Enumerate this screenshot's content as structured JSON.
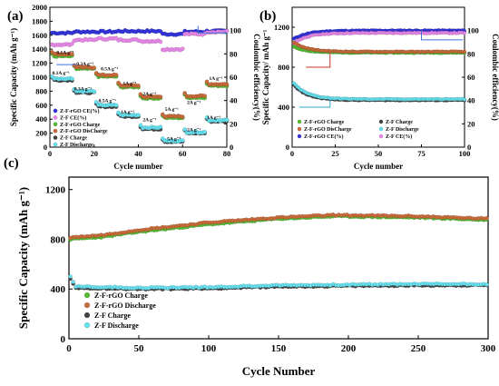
{
  "chart_data": [
    {
      "panel": "(a)",
      "type": "scatter",
      "xlabel": "Cycle number",
      "ylabel": "Specific Capacity (mAh g⁻¹)",
      "y2label": "Coulombic efficiency(%)",
      "xlim": [
        0,
        80
      ],
      "ylim": [
        0,
        2000
      ],
      "y2lim": [
        0,
        120
      ],
      "xticks": [
        "0",
        "20",
        "40",
        "60",
        "80"
      ],
      "yticks": [
        "0",
        "200",
        "400",
        "600",
        "800",
        "1000",
        "1200",
        "1400",
        "1600",
        "1800",
        "2000"
      ],
      "y2ticks": [
        "0",
        "20",
        "40",
        "60",
        "80",
        "100"
      ],
      "legend": [
        "Z-F-rGO CE(%)",
        "Z-F CE(%)",
        "Z-F-rGO Charge",
        "Z-F-rGO DisCharge",
        "Z-F Charge",
        "Z-F Discharge"
      ],
      "annotations": [
        {
          "text": "0.1A g⁻¹",
          "x": 3,
          "y": 1330
        },
        {
          "text": "0.3A g⁻¹",
          "x": 12,
          "y": 1170
        },
        {
          "text": "0.5A g⁻¹",
          "x": 23,
          "y": 1100
        },
        {
          "text": "1A g⁻¹",
          "x": 33,
          "y": 890
        },
        {
          "text": "2A g⁻¹",
          "x": 42,
          "y": 740
        },
        {
          "text": "5A g⁻¹",
          "x": 52,
          "y": 520
        },
        {
          "text": "2A g⁻¹",
          "x": 62,
          "y": 620
        },
        {
          "text": "1A g⁻¹",
          "x": 72,
          "y": 960
        },
        {
          "text": "0.1A g⁻¹",
          "x": 1,
          "y": 1040
        },
        {
          "text": "0.3A g⁻¹",
          "x": 11,
          "y": 810
        },
        {
          "text": "0.5A g⁻¹",
          "x": 22,
          "y": 640
        },
        {
          "text": "1A g⁻¹",
          "x": 32,
          "y": 480
        },
        {
          "text": "2A g⁻¹",
          "x": 42,
          "y": 370
        },
        {
          "text": "5A g⁻¹",
          "x": 53,
          "y": 100
        },
        {
          "text": "2A g⁻¹",
          "x": 62,
          "y": 230
        },
        {
          "text": "1A g⁻¹",
          "x": 71,
          "y": 400
        }
      ],
      "series": [
        {
          "name": "Z-F-rGO CE(%)",
          "axis": "right",
          "color": "#3333dd",
          "segments": [
            [
              1,
              10,
              98
            ],
            [
              11,
              20,
              99
            ],
            [
              21,
              30,
              99
            ],
            [
              31,
              40,
              99.5
            ],
            [
              41,
              50,
              99.5
            ],
            [
              51,
              60,
              97
            ],
            [
              61,
              70,
              99
            ],
            [
              71,
              80,
              99.5
            ]
          ]
        },
        {
          "name": "Z-F CE(%)",
          "axis": "right",
          "color": "#e888e8",
          "segments": [
            [
              1,
              10,
              88
            ],
            [
              11,
              20,
              92
            ],
            [
              21,
              30,
              93
            ],
            [
              31,
              40,
              92
            ],
            [
              41,
              50,
              91
            ],
            [
              51,
              60,
              84
            ],
            [
              61,
              70,
              97
            ],
            [
              71,
              80,
              99
            ]
          ]
        },
        {
          "name": "Z-F-rGO Charge",
          "axis": "left",
          "color": "#55bb33",
          "segments": [
            [
              1,
              10,
              1300
            ],
            [
              11,
              20,
              1120
            ],
            [
              21,
              30,
              1010
            ],
            [
              31,
              40,
              860
            ],
            [
              41,
              50,
              700
            ],
            [
              51,
              60,
              420
            ],
            [
              61,
              70,
              710
            ],
            [
              71,
              80,
              880
            ]
          ]
        },
        {
          "name": "Z-F-rGO DisCharge",
          "axis": "left",
          "color": "#c86a3a",
          "segments": [
            [
              1,
              10,
              1330
            ],
            [
              11,
              20,
              1140
            ],
            [
              21,
              30,
              1030
            ],
            [
              31,
              40,
              880
            ],
            [
              41,
              50,
              720
            ],
            [
              51,
              60,
              440
            ],
            [
              61,
              70,
              730
            ],
            [
              71,
              80,
              900
            ]
          ]
        },
        {
          "name": "Z-F Charge",
          "axis": "left",
          "color": "#444444",
          "segments": [
            [
              1,
              10,
              960
            ],
            [
              11,
              20,
              780
            ],
            [
              21,
              30,
              580
            ],
            [
              31,
              40,
              440
            ],
            [
              41,
              50,
              260
            ],
            [
              51,
              60,
              80
            ],
            [
              61,
              70,
              200
            ],
            [
              71,
              80,
              370
            ]
          ]
        },
        {
          "name": "Z-F Discharge",
          "axis": "left",
          "color": "#66e0ee",
          "segments": [
            [
              1,
              10,
              980
            ],
            [
              11,
              20,
              800
            ],
            [
              21,
              30,
              600
            ],
            [
              31,
              40,
              460
            ],
            [
              41,
              50,
              280
            ],
            [
              51,
              60,
              90
            ],
            [
              61,
              70,
              215
            ],
            [
              71,
              80,
              385
            ]
          ]
        }
      ]
    },
    {
      "panel": "(b)",
      "type": "scatter",
      "xlabel": "Cycle number",
      "ylabel": "Specific Capacity/ mAh g⁻¹",
      "y2label": "Coulombic efficiency(%)",
      "xlim": [
        0,
        100
      ],
      "ylim": [
        0,
        1400
      ],
      "y2lim": [
        0,
        120
      ],
      "xticks": [
        "0",
        "25",
        "50",
        "75",
        "100"
      ],
      "yticks": [
        "0",
        "400",
        "800",
        "1200"
      ],
      "y2ticks": [
        "0",
        "20",
        "40",
        "60",
        "80",
        "100"
      ],
      "legend": [
        "Z-F-rGO Charge",
        "Z-F-rGO DisCharge",
        "Z-F-rGO CE(%)",
        "Z-F Charge",
        "Z-F Discharge",
        "Z-F CE(%)"
      ],
      "series": [
        {
          "name": "Z-F-rGO CE(%)",
          "axis": "right",
          "color": "#3333dd",
          "start": 92,
          "end": 100
        },
        {
          "name": "Z-F CE(%)",
          "axis": "right",
          "color": "#e888e8",
          "start": 88,
          "end": 98
        },
        {
          "name": "Z-F-rGO Charge",
          "axis": "left",
          "color": "#55bb33",
          "start": 1010,
          "end": 945
        },
        {
          "name": "Z-F-rGO DisCharge",
          "axis": "left",
          "color": "#c86a3a",
          "start": 1060,
          "end": 955
        },
        {
          "name": "Z-F Charge",
          "axis": "left",
          "color": "#444444",
          "start": 640,
          "end": 470
        },
        {
          "name": "Z-F Discharge",
          "axis": "left",
          "color": "#66e0ee",
          "start": 660,
          "end": 480
        }
      ]
    },
    {
      "panel": "(c)",
      "type": "scatter",
      "xlabel": "Cycle Number",
      "ylabel": "Specific Capacity (mAh g⁻¹)",
      "xlim": [
        0,
        300
      ],
      "ylim": [
        0,
        1300
      ],
      "xticks": [
        "0",
        "50",
        "100",
        "150",
        "200",
        "250",
        "300"
      ],
      "yticks": [
        "0",
        "400",
        "800",
        "1200"
      ],
      "legend": [
        "Z-F-rGO Charge",
        "Z-F-rGO Discharge",
        "Z-F  Charge",
        "Z-F  Discharge"
      ],
      "series": [
        {
          "name": "Z-F-rGO Charge",
          "color": "#55bb33",
          "points": [
            [
              1,
              800
            ],
            [
              25,
              820
            ],
            [
              50,
              860
            ],
            [
              100,
              920
            ],
            [
              150,
              965
            ],
            [
              190,
              985
            ],
            [
              250,
              975
            ],
            [
              300,
              955
            ]
          ]
        },
        {
          "name": "Z-F-rGO Discharge",
          "color": "#c86a3a",
          "points": [
            [
              1,
              815
            ],
            [
              25,
              835
            ],
            [
              50,
              875
            ],
            [
              100,
              935
            ],
            [
              150,
              975
            ],
            [
              190,
              995
            ],
            [
              250,
              985
            ],
            [
              300,
              965
            ]
          ]
        },
        {
          "name": "Z-F  Charge",
          "color": "#444444",
          "points": [
            [
              1,
              480
            ],
            [
              5,
              410
            ],
            [
              50,
              400
            ],
            [
              100,
              405
            ],
            [
              150,
              420
            ],
            [
              200,
              425
            ],
            [
              250,
              430
            ],
            [
              300,
              430
            ]
          ]
        },
        {
          "name": "Z-F  Discharge",
          "color": "#66e0ee",
          "points": [
            [
              1,
              500
            ],
            [
              5,
              420
            ],
            [
              50,
              410
            ],
            [
              100,
              415
            ],
            [
              150,
              430
            ],
            [
              200,
              435
            ],
            [
              250,
              440
            ],
            [
              300,
              440
            ]
          ]
        }
      ]
    }
  ]
}
